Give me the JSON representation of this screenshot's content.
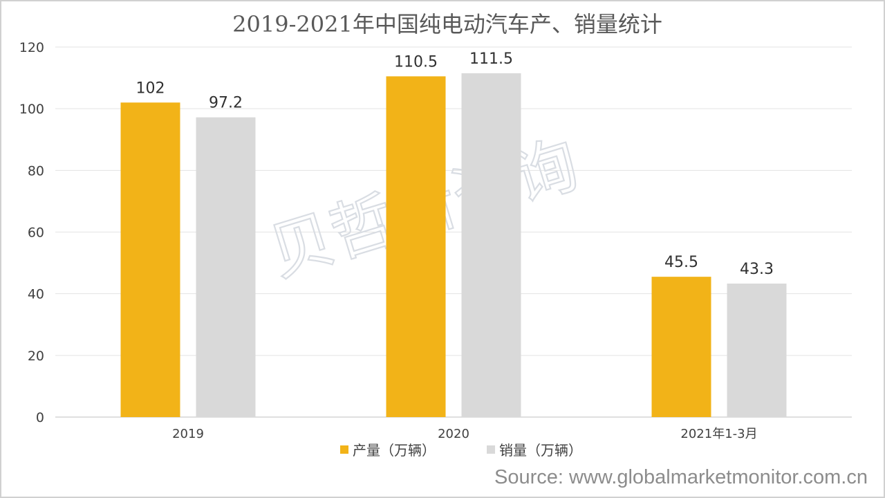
{
  "chart_data": {
    "type": "bar",
    "title": "2019-2021年中国纯电动汽车产、销量统计",
    "categories": [
      "2019",
      "2020",
      "2021年1-3月"
    ],
    "series": [
      {
        "name": "产量（万辆）",
        "values": [
          102,
          110.5,
          45.5
        ],
        "color": "#f2b318"
      },
      {
        "name": "销量（万辆）",
        "values": [
          97.2,
          111.5,
          43.3
        ],
        "color": "#d9d9d9"
      }
    ],
    "data_labels": [
      [
        "102",
        "110.5",
        "45.5"
      ],
      [
        "97.2",
        "111.5",
        "43.3"
      ]
    ],
    "yticks": [
      "0",
      "20",
      "40",
      "60",
      "80",
      "100",
      "120"
    ],
    "ylim": [
      0,
      120
    ],
    "grid": true,
    "legend_position": "bottom"
  },
  "watermark": "贝哲斯咨询",
  "source": "Source: www.globalmarketmonitor.com.cn"
}
